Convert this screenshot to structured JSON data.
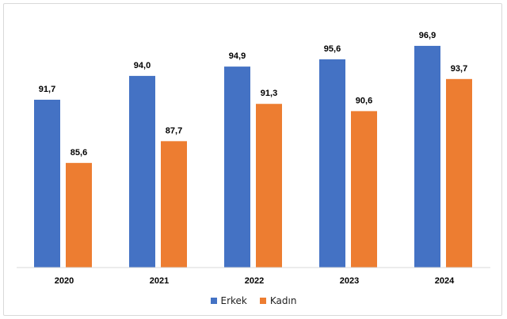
{
  "chart_data": {
    "type": "bar",
    "categories": [
      "2020",
      "2021",
      "2022",
      "2023",
      "2024"
    ],
    "series": [
      {
        "name": "Erkek",
        "values": [
          91.7,
          94.0,
          94.9,
          95.6,
          96.9
        ],
        "labels": [
          "91,7",
          "94,0",
          "94,9",
          "95,6",
          "96,9"
        ],
        "color": "#4472c4"
      },
      {
        "name": "Kadın",
        "values": [
          85.6,
          87.7,
          91.3,
          90.6,
          93.7
        ],
        "labels": [
          "85,6",
          "87,7",
          "91,3",
          "90,6",
          "93,7"
        ],
        "color": "#ed7d31"
      }
    ],
    "ylim": [
      75.5,
      98.5
    ],
    "legend_position": "bottom",
    "grid": false
  }
}
